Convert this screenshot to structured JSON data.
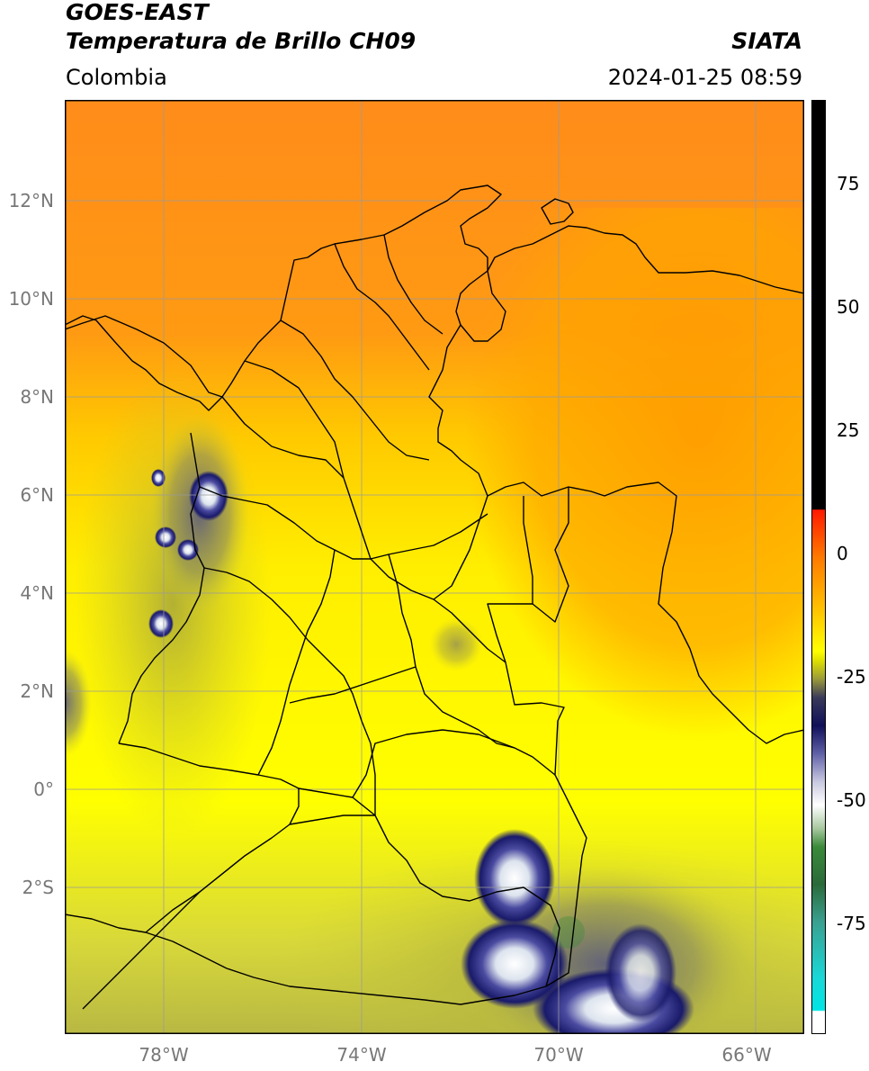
{
  "header": {
    "line1": "GOES-EAST",
    "line2": "Temperatura de Brillo CH09",
    "agency": "SIATA",
    "region": "Colombia",
    "datetime": "2024-01-25 08:59"
  },
  "axes": {
    "lat_labels": [
      "12°N",
      "10°N",
      "8°N",
      "6°N",
      "4°N",
      "2°N",
      "0°",
      "2°S"
    ],
    "lon_labels": [
      "78°W",
      "74°W",
      "70°W",
      "66°W"
    ]
  },
  "colorbar": {
    "tick_labels": [
      "75",
      "50",
      "25",
      "0",
      "-25",
      "-50",
      "-75"
    ],
    "colors": {
      "black": "#000000",
      "red": "#ff1a00",
      "orange": "#ff8c00",
      "yellow": "#ffff00",
      "olive": "#9a9a3a",
      "navy": "#10105a",
      "white": "#ffffff",
      "green": "#3a8a3a",
      "cyan": "#1ad7d7"
    }
  },
  "map_colors": {
    "orange": "#ff8c1a",
    "yellow": "#ffef00",
    "olive": "#c8c83a",
    "deep_convection": "#15156e",
    "cold_tops": "#e8eef0",
    "borders": "#000000",
    "gridlines": "#9a9a9a"
  }
}
